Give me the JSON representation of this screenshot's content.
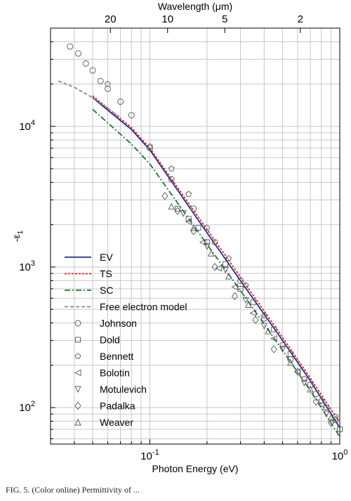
{
  "chart_data": {
    "type": "line",
    "xlabel": "Photon Energy (eV)",
    "ylabel": "-ε",
    "ylabel_sub": "1",
    "top_xlabel": "Wavelength (μm)",
    "x_scale": "log",
    "y_scale": "log",
    "xlim": [
      0.03,
      1.0
    ],
    "ylim": [
      55,
      50000
    ],
    "grid": true,
    "x_tick_labels": [
      {
        "value": 0.1,
        "base": "10",
        "exp": "-1"
      },
      {
        "value": 1.0,
        "base": "10",
        "exp": "0"
      }
    ],
    "y_tick_labels": [
      {
        "value": 100,
        "base": "10",
        "exp": "2"
      },
      {
        "value": 1000,
        "base": "10",
        "exp": "3"
      },
      {
        "value": 10000,
        "base": "10",
        "exp": "4"
      }
    ],
    "top_tick_labels": [
      {
        "label": "20",
        "wavelength_um": 20
      },
      {
        "label": "10",
        "wavelength_um": 10
      },
      {
        "label": "5",
        "wavelength_um": 5
      },
      {
        "label": "2",
        "wavelength_um": 2
      }
    ],
    "legend_position": "bottom-left",
    "series": [
      {
        "name": "EV",
        "kind": "line",
        "color": "#1f2f8f",
        "dash": "",
        "x": [
          0.05,
          0.08,
          0.1,
          0.2,
          0.3,
          0.5,
          0.7,
          1.0
        ],
        "y": [
          16000,
          9500,
          6800,
          1750,
          800,
          300,
          155,
          72
        ]
      },
      {
        "name": "TS",
        "kind": "line",
        "color": "#e8202a",
        "dash": "3,2",
        "x": [
          0.05,
          0.08,
          0.1,
          0.2,
          0.3,
          0.5,
          0.7,
          1.0
        ],
        "y": [
          16500,
          9800,
          7000,
          1850,
          850,
          315,
          162,
          78
        ]
      },
      {
        "name": "SC",
        "kind": "line",
        "color": "#1a7a30",
        "dash": "8,3,2,3",
        "x": [
          0.05,
          0.08,
          0.1,
          0.2,
          0.3,
          0.5,
          0.7,
          1.0
        ],
        "y": [
          13200,
          7500,
          5400,
          1450,
          680,
          255,
          132,
          62
        ]
      },
      {
        "name": "Free electron model",
        "kind": "line",
        "color": "#888888",
        "dash": "5,3",
        "x": [
          0.033,
          0.04,
          0.05,
          0.06,
          0.07
        ],
        "y": [
          21000,
          19000,
          16000,
          13500,
          11500
        ]
      },
      {
        "name": "Johnson",
        "kind": "marker",
        "marker": "circle",
        "x": [
          0.038,
          0.042,
          0.046,
          0.05,
          0.055,
          0.06,
          0.07,
          0.08,
          0.1,
          0.13,
          0.17,
          0.22,
          0.3,
          0.4,
          0.55,
          0.75,
          0.95
        ],
        "y": [
          37000,
          33000,
          28000,
          25000,
          21000,
          18500,
          15000,
          12000,
          7000,
          4200,
          2600,
          1500,
          800,
          430,
          220,
          125,
          82
        ]
      },
      {
        "name": "Dold",
        "kind": "marker",
        "marker": "square",
        "x": [
          0.14,
          0.16,
          0.18,
          0.2,
          0.25,
          0.3,
          0.35,
          0.45,
          0.55,
          0.7,
          0.85,
          1.0
        ],
        "y": [
          2600,
          2200,
          1900,
          1500,
          1050,
          700,
          560,
          360,
          240,
          145,
          100,
          70
        ]
      },
      {
        "name": "Bennett",
        "kind": "marker",
        "marker": "pentagon",
        "x": [
          0.06,
          0.1,
          0.13,
          0.16,
          0.2,
          0.26,
          0.32,
          0.4,
          0.5,
          0.65,
          0.8,
          0.95
        ],
        "y": [
          20000,
          7200,
          5000,
          3300,
          1900,
          1150,
          740,
          450,
          280,
          160,
          112,
          86
        ]
      },
      {
        "name": "Bolotin",
        "kind": "marker",
        "marker": "tri-left",
        "x": [
          0.16,
          0.19,
          0.23,
          0.28,
          0.35,
          0.45,
          0.6,
          0.8
        ],
        "y": [
          2100,
          1500,
          980,
          720,
          470,
          310,
          180,
          105
        ]
      },
      {
        "name": "Motulevich",
        "kind": "marker",
        "marker": "tri-down",
        "x": [
          0.15,
          0.2,
          0.25,
          0.32,
          0.4,
          0.5,
          0.65,
          0.85
        ],
        "y": [
          2400,
          1400,
          950,
          580,
          380,
          260,
          150,
          90
        ]
      },
      {
        "name": "Padalka",
        "kind": "marker",
        "marker": "diamond",
        "x": [
          0.12,
          0.14,
          0.17,
          0.22,
          0.28,
          0.36,
          0.45,
          0.6,
          0.75,
          0.9
        ],
        "y": [
          3200,
          2500,
          1800,
          1000,
          620,
          420,
          260,
          180,
          110,
          78
        ]
      },
      {
        "name": "Weaver",
        "kind": "marker",
        "marker": "tri-up",
        "x": [
          0.13,
          0.17,
          0.21,
          0.26,
          0.33,
          0.42,
          0.55,
          0.7,
          0.9
        ],
        "y": [
          2700,
          1900,
          1250,
          860,
          540,
          350,
          210,
          135,
          85
        ]
      }
    ]
  },
  "caption": "FIG. 5. (Color online) Permittivity of ..."
}
